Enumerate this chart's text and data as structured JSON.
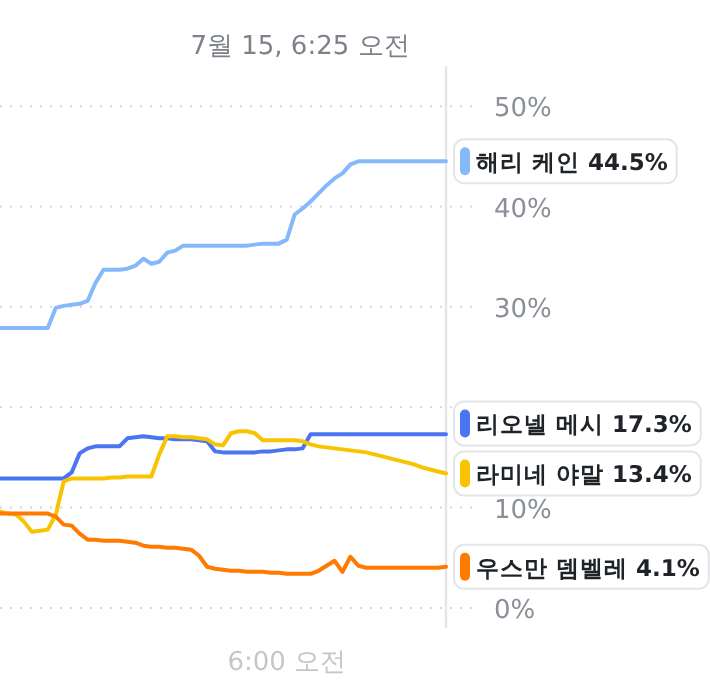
{
  "chart_data": {
    "type": "line",
    "annotations": [
      "7월 15, 6:25 오전"
    ],
    "categories": [
      null,
      null,
      null,
      null,
      null,
      null,
      null,
      null,
      null,
      null,
      null,
      null,
      null,
      null,
      null,
      null,
      null,
      null,
      null,
      null,
      null,
      null,
      null,
      null,
      null,
      null,
      null,
      null,
      null,
      null,
      null,
      null,
      null,
      null,
      null,
      null,
      "6:00 오전",
      null,
      null,
      null,
      null,
      null,
      null,
      null,
      null,
      null,
      null,
      null,
      null,
      null,
      null,
      null,
      null,
      null,
      null,
      null,
      null
    ],
    "ylim": [
      -2,
      54
    ],
    "yticks": [
      {
        "value": 0,
        "label": "0%"
      },
      {
        "value": 10,
        "label": "10%"
      },
      {
        "value": 20,
        "label": null
      },
      {
        "value": 30,
        "label": "30%"
      },
      {
        "value": 40,
        "label": "40%"
      },
      {
        "value": 50,
        "label": "50%"
      }
    ],
    "grid": "y",
    "legend": "right",
    "marker": "none",
    "line_style": "solid",
    "series": [
      {
        "name": "해리 케인 44.5%",
        "color": "#86b9fb",
        "values": [
          27.9,
          27.9,
          27.9,
          27.9,
          27.9,
          27.9,
          27.9,
          29.9,
          30.1,
          30.2,
          30.3,
          30.6,
          32.4,
          33.7,
          33.7,
          33.7,
          33.8,
          34.1,
          34.8,
          34.3,
          34.5,
          35.4,
          35.6,
          36.1,
          36.1,
          36.1,
          36.1,
          36.1,
          36.1,
          36.1,
          36.1,
          36.1,
          36.2,
          36.3,
          36.3,
          36.3,
          36.7,
          39.2,
          39.8,
          40.5,
          41.3,
          42.1,
          42.8,
          43.3,
          44.2,
          44.5,
          44.5,
          44.5,
          44.5,
          44.5,
          44.5,
          44.5,
          44.5,
          44.5,
          44.5,
          44.5,
          44.5
        ]
      },
      {
        "name": "리오넬 메시 17.3%",
        "color": "#4a74f0",
        "values": [
          12.9,
          12.9,
          12.9,
          12.9,
          12.9,
          12.9,
          12.9,
          12.9,
          12.9,
          13.5,
          15.4,
          15.9,
          16.1,
          16.1,
          16.1,
          16.1,
          16.9,
          17.0,
          17.1,
          17.0,
          16.9,
          16.9,
          16.8,
          16.8,
          16.8,
          16.7,
          16.6,
          15.6,
          15.5,
          15.5,
          15.5,
          15.5,
          15.5,
          15.6,
          15.6,
          15.7,
          15.8,
          15.8,
          15.9,
          17.3,
          17.3,
          17.3,
          17.3,
          17.3,
          17.3,
          17.3,
          17.3,
          17.3,
          17.3,
          17.3,
          17.3,
          17.3,
          17.3,
          17.3,
          17.3,
          17.3,
          17.3
        ]
      },
      {
        "name": "라미네 야말 13.4%",
        "color": "#f8c300",
        "values": [
          9.6,
          9.4,
          9.3,
          8.6,
          7.6,
          7.7,
          7.8,
          9.3,
          12.6,
          12.9,
          12.9,
          12.9,
          12.9,
          12.9,
          13.0,
          13.0,
          13.1,
          13.1,
          13.1,
          13.1,
          15.3,
          17.1,
          17.1,
          17.0,
          17.0,
          16.9,
          16.8,
          16.3,
          16.2,
          17.4,
          17.6,
          17.6,
          17.4,
          16.7,
          16.7,
          16.7,
          16.7,
          16.7,
          16.6,
          16.3,
          16.1,
          16.0,
          15.9,
          15.8,
          15.7,
          15.6,
          15.5,
          15.3,
          15.1,
          14.9,
          14.7,
          14.5,
          14.3,
          14.0,
          13.8,
          13.6,
          13.4
        ]
      },
      {
        "name": "우스만 뎀벨레 4.1%",
        "color": "#ff7a00",
        "values": [
          9.4,
          9.4,
          9.4,
          9.4,
          9.4,
          9.4,
          9.4,
          9.1,
          8.3,
          8.2,
          7.4,
          6.8,
          6.8,
          6.7,
          6.7,
          6.7,
          6.6,
          6.5,
          6.2,
          6.1,
          6.1,
          6.0,
          6.0,
          5.9,
          5.8,
          5.2,
          4.1,
          3.9,
          3.8,
          3.7,
          3.7,
          3.6,
          3.6,
          3.6,
          3.5,
          3.5,
          3.4,
          3.4,
          3.4,
          3.4,
          3.7,
          4.2,
          4.7,
          3.6,
          5.1,
          4.2,
          4.0,
          4.0,
          4.0,
          4.0,
          4.0,
          4.0,
          4.0,
          4.0,
          4.0,
          4.0,
          4.1
        ]
      }
    ]
  }
}
